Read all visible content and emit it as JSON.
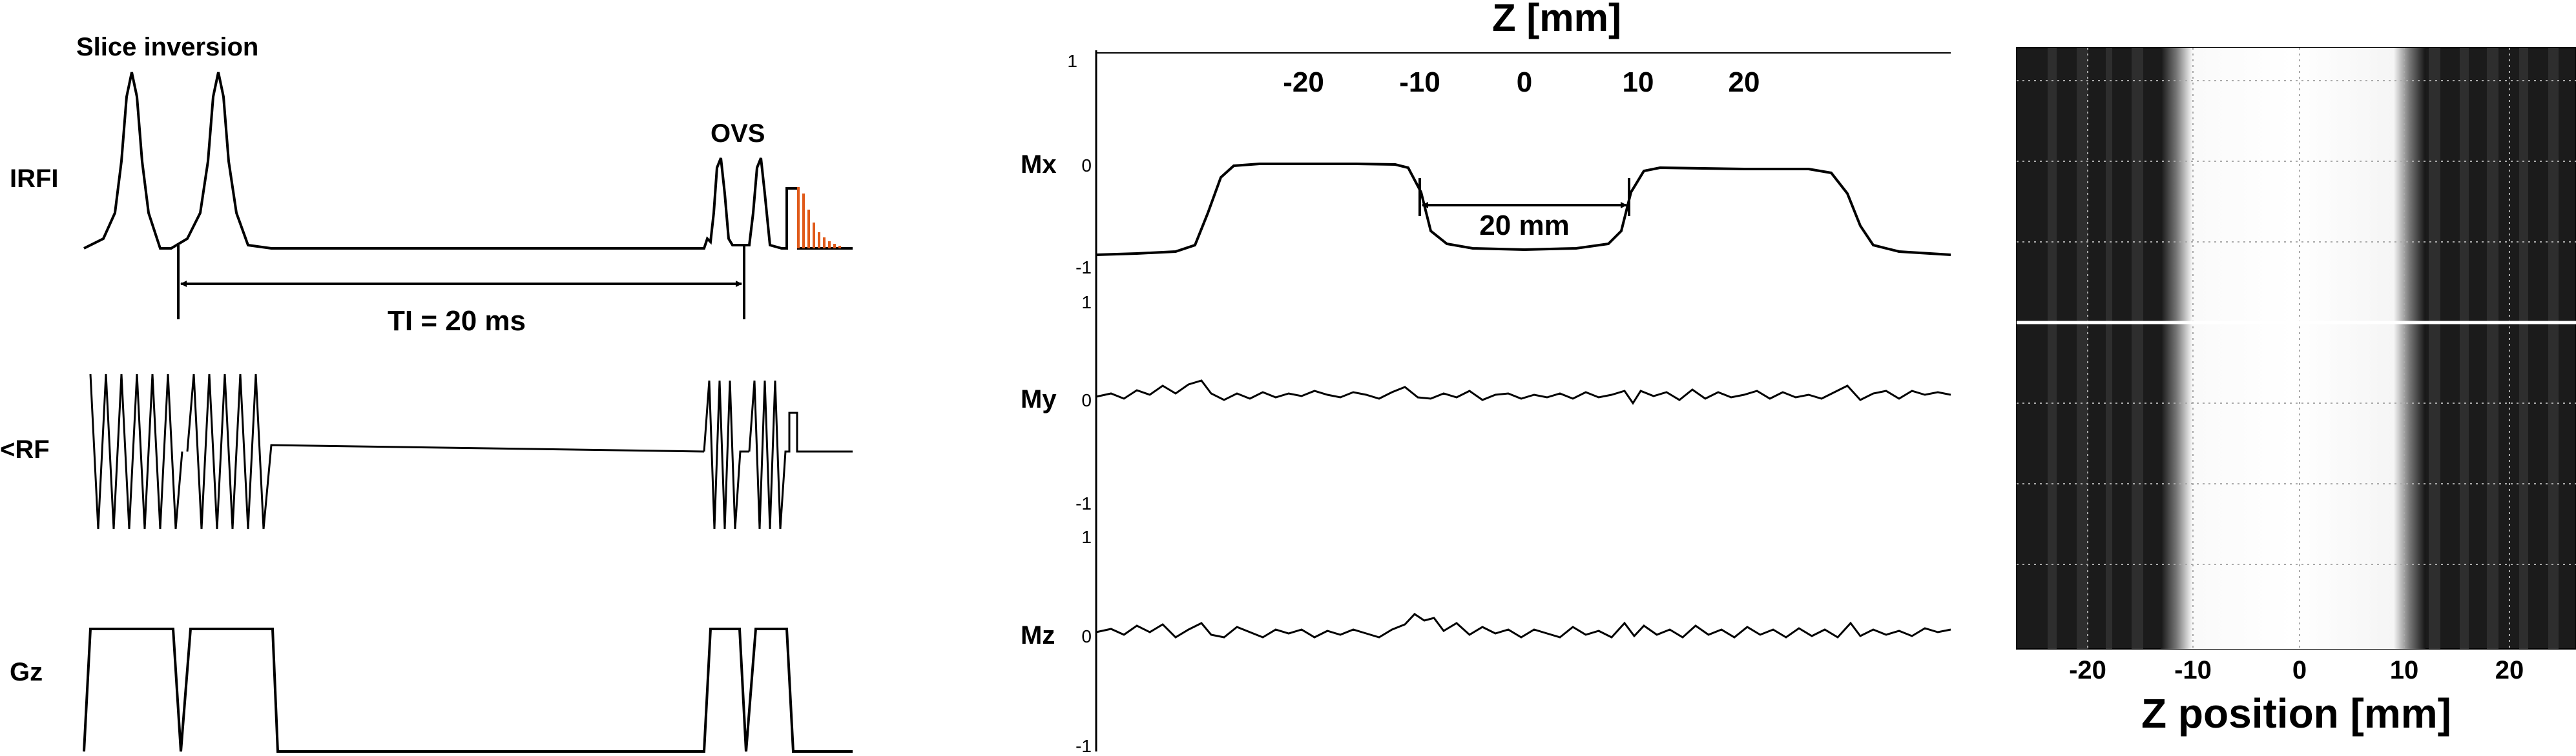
{
  "sequence": {
    "slice_inversion": "Slice inversion",
    "ovs": "OVS",
    "ti": "TI = 20 ms",
    "rows": {
      "irfi": "IRFI",
      "rf": "<RF",
      "gz": "Gz"
    },
    "colors": {
      "trace": "#000000",
      "spoiler": "#e05a1a"
    }
  },
  "profiles": {
    "title": "Z [mm]",
    "x_ticks": [
      "-20",
      "-10",
      "0",
      "10",
      "20"
    ],
    "width_label": "20 mm",
    "panels": [
      {
        "name": "Mx",
        "y_ticks": [
          "1",
          "0",
          "-1"
        ]
      },
      {
        "name": "My",
        "y_ticks": [
          "1",
          "0",
          "-1"
        ]
      },
      {
        "name": "Mz",
        "y_ticks": [
          "1",
          "0",
          "-1"
        ]
      }
    ]
  },
  "image_panel": {
    "xlabel": "Z position [mm]",
    "x_ticks": [
      "-20",
      "-10",
      "0",
      "10",
      "20"
    ],
    "colors": {
      "background": "#1a1a1a",
      "band": "#ffffff",
      "gridline": "#bbbbbb"
    }
  },
  "chart_data": [
    {
      "type": "line",
      "title": "Z [mm]",
      "series": [
        {
          "name": "Mx",
          "x": [
            -40,
            -30,
            -25,
            -20,
            -15,
            -10,
            -5,
            0,
            5,
            10,
            15,
            20,
            25,
            30,
            40
          ],
          "values": [
            -0.9,
            -0.85,
            0,
            0,
            0,
            -0.05,
            -0.85,
            -0.88,
            -0.85,
            -0.05,
            0,
            0,
            0,
            -0.85,
            -0.9
          ]
        },
        {
          "name": "My",
          "x": [
            -40,
            -30,
            -20,
            -10,
            0,
            10,
            20,
            30,
            40
          ],
          "values": [
            0,
            0.05,
            0.1,
            0.05,
            0,
            0.05,
            0,
            0.05,
            0
          ]
        },
        {
          "name": "Mz",
          "x": [
            -40,
            -30,
            -20,
            -10,
            0,
            10,
            20,
            30,
            40
          ],
          "values": [
            0,
            0.05,
            0.1,
            0.05,
            0.1,
            0.05,
            0,
            0.05,
            0
          ]
        }
      ],
      "xlim": [
        -40,
        40
      ],
      "ylim": [
        -1,
        1
      ]
    }
  ]
}
